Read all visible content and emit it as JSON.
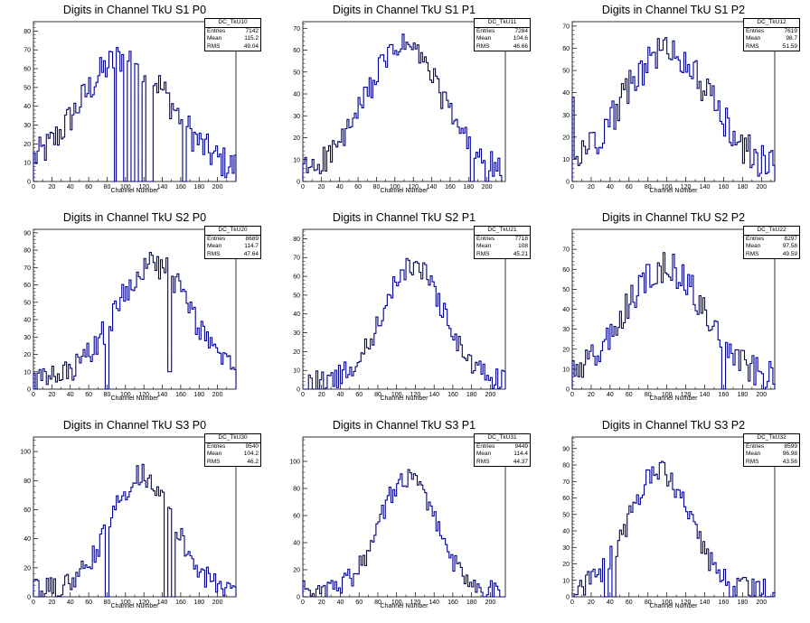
{
  "panels": [
    {
      "title": "Digits in Channel TkU S1 P0",
      "hist_name": "DC_TkU10",
      "entries": "7142",
      "mean": "115.2",
      "rms": "49.04"
    },
    {
      "title": "Digits in Channel TkU S1 P1",
      "hist_name": "DC_TkU11",
      "entries": "7284",
      "mean": "104.6",
      "rms": "46.66"
    },
    {
      "title": "Digits in Channel TkU S1 P2",
      "hist_name": "DC_TkU12",
      "entries": "7619",
      "mean": "98.7",
      "rms": "51.59"
    },
    {
      "title": "Digits in Channel TkU S2 P0",
      "hist_name": "DC_TkU20",
      "entries": "8689",
      "mean": "114.7",
      "rms": "47.64"
    },
    {
      "title": "Digits in Channel TkU S2 P1",
      "hist_name": "DC_TkU21",
      "entries": "7718",
      "mean": "108",
      "rms": "45.21"
    },
    {
      "title": "Digits in Channel TkU S2 P2",
      "hist_name": "DC_TkU22",
      "entries": "8297",
      "mean": "97.58",
      "rms": "49.59"
    },
    {
      "title": "Digits in Channel TkU S3 P0",
      "hist_name": "DC_TkU30",
      "entries": "9540",
      "mean": "104.2",
      "rms": "46.2"
    },
    {
      "title": "Digits in Channel TkU S3 P1",
      "hist_name": "DC_TkU31",
      "entries": "9449",
      "mean": "114.4",
      "rms": "44.37"
    },
    {
      "title": "Digits in Channel TkU S3 P2",
      "hist_name": "DC_TkU32",
      "entries": "8599",
      "mean": "96.98",
      "rms": "43.56"
    }
  ],
  "stat_labels": {
    "entries": "Entries",
    "mean": "Mean",
    "rms": "RMS"
  },
  "colors": {
    "line": "#00008b",
    "axis": "#000000"
  },
  "chart_data": [
    {
      "type": "bar",
      "title": "Digits in Channel TkU S1 P0",
      "xlabel": "Channel Number",
      "ylabel": "",
      "xlim": [
        0,
        220
      ],
      "ylim": [
        0,
        85
      ],
      "xticks": [
        0,
        20,
        40,
        60,
        80,
        100,
        120,
        140,
        160,
        180,
        200
      ],
      "yticks": [
        0,
        10,
        20,
        30,
        40,
        50,
        60,
        70,
        80
      ],
      "bins": 55,
      "center": 100,
      "peak": 62,
      "width": 70,
      "noise": 9,
      "start": 0,
      "end": 220,
      "dips": [
        [
          89,
          0
        ],
        [
          100,
          0
        ],
        [
          108,
          0
        ],
        [
          116,
          0
        ],
        [
          124,
          0
        ],
        [
          128,
          0
        ],
        [
          164,
          0
        ]
      ]
    },
    {
      "type": "bar",
      "title": "Digits in Channel TkU S1 P1",
      "xlabel": "Channel Number",
      "ylabel": "",
      "xlim": [
        0,
        220
      ],
      "ylim": [
        0,
        73
      ],
      "xticks": [
        0,
        20,
        40,
        60,
        80,
        100,
        120,
        140,
        160,
        180,
        200
      ],
      "yticks": [
        0,
        10,
        20,
        30,
        40,
        50,
        60,
        70
      ],
      "bins": 55,
      "center": 110,
      "peak": 58,
      "width": 58,
      "noise": 6,
      "start": 0,
      "end": 216,
      "dips": [
        [
          184,
          0
        ],
        [
          200,
          0
        ]
      ]
    },
    {
      "type": "bar",
      "title": "Digits in Channel TkU S1 P2",
      "xlabel": "Channel Number",
      "ylabel": "",
      "xlim": [
        0,
        214
      ],
      "ylim": [
        0,
        72
      ],
      "xticks": [
        0,
        20,
        40,
        60,
        80,
        100,
        120,
        140,
        160,
        180,
        200
      ],
      "yticks": [
        0,
        10,
        20,
        30,
        40,
        50,
        60,
        70
      ],
      "bins": 54,
      "center": 100,
      "peak": 55,
      "width": 65,
      "noise": 8,
      "start": 0,
      "end": 214,
      "dips": [
        [
          0,
          38
        ],
        [
          20,
          22
        ]
      ]
    },
    {
      "type": "bar",
      "title": "Digits in Channel TkU S2 P0",
      "xlabel": "Channel Number",
      "ylabel": "",
      "xlim": [
        0,
        220
      ],
      "ylim": [
        0,
        92
      ],
      "xticks": [
        0,
        20,
        40,
        60,
        80,
        100,
        120,
        140,
        160,
        180,
        200
      ],
      "yticks": [
        0,
        10,
        20,
        30,
        40,
        50,
        60,
        70,
        80,
        90
      ],
      "bins": 55,
      "center": 130,
      "peak": 68,
      "width": 58,
      "noise": 8,
      "start": 0,
      "end": 220,
      "dips": [
        [
          80,
          0
        ],
        [
          148,
          10
        ]
      ]
    },
    {
      "type": "bar",
      "title": "Digits in Channel TkU S2 P1",
      "xlabel": "Channel Number",
      "ylabel": "",
      "xlim": [
        0,
        216
      ],
      "ylim": [
        0,
        85
      ],
      "xticks": [
        0,
        20,
        40,
        60,
        80,
        100,
        120,
        140,
        160,
        180,
        200
      ],
      "yticks": [
        0,
        10,
        20,
        30,
        40,
        50,
        60,
        70,
        80
      ],
      "bins": 54,
      "center": 118,
      "peak": 62,
      "width": 45,
      "noise": 6,
      "start": 0,
      "end": 216,
      "dips": [
        [
          4,
          0
        ],
        [
          12,
          0
        ],
        [
          0,
          0
        ]
      ]
    },
    {
      "type": "bar",
      "title": "Digits in Channel TkU S2 P2",
      "xlabel": "Channel Number",
      "ylabel": "",
      "xlim": [
        0,
        214
      ],
      "ylim": [
        0,
        80
      ],
      "xticks": [
        0,
        20,
        40,
        60,
        80,
        100,
        120,
        140,
        160,
        180,
        200
      ],
      "yticks": [
        0,
        10,
        20,
        30,
        40,
        50,
        60,
        70
      ],
      "bins": 54,
      "center": 98,
      "peak": 57,
      "width": 60,
      "noise": 8,
      "start": 0,
      "end": 214,
      "dips": [
        [
          160,
          0
        ]
      ]
    },
    {
      "type": "bar",
      "title": "Digits in Channel TkU S3 P0",
      "xlabel": "Channel Number",
      "ylabel": "",
      "xlim": [
        0,
        220
      ],
      "ylim": [
        0,
        110
      ],
      "xticks": [
        0,
        20,
        40,
        60,
        80,
        100,
        120,
        140,
        160,
        180,
        200
      ],
      "yticks": [
        0,
        20,
        40,
        60,
        80,
        100
      ],
      "bins": 55,
      "center": 118,
      "peak": 80,
      "width": 48,
      "noise": 8,
      "start": 0,
      "end": 220,
      "dips": [
        [
          80,
          0
        ],
        [
          144,
          0
        ],
        [
          152,
          0
        ]
      ]
    },
    {
      "type": "bar",
      "title": "Digits in Channel TkU S3 P1",
      "xlabel": "Channel Number",
      "ylabel": "",
      "xlim": [
        0,
        216
      ],
      "ylim": [
        0,
        118
      ],
      "xticks": [
        0,
        20,
        40,
        60,
        80,
        100,
        120,
        140,
        160,
        180,
        200
      ],
      "yticks": [
        0,
        20,
        40,
        60,
        80,
        100
      ],
      "bins": 54,
      "center": 112,
      "peak": 85,
      "width": 42,
      "noise": 8,
      "start": 0,
      "end": 216,
      "dips": []
    },
    {
      "type": "bar",
      "title": "Digits in Channel TkU S3 P2",
      "xlabel": "Channel Number",
      "ylabel": "",
      "xlim": [
        0,
        214
      ],
      "ylim": [
        0,
        97
      ],
      "xticks": [
        0,
        20,
        40,
        60,
        80,
        100,
        120,
        140,
        160,
        180,
        200
      ],
      "yticks": [
        0,
        10,
        20,
        30,
        40,
        50,
        60,
        70,
        80,
        90
      ],
      "bins": 54,
      "center": 92,
      "peak": 72,
      "width": 45,
      "noise": 7,
      "start": 0,
      "end": 214,
      "dips": [
        [
          36,
          0
        ],
        [
          44,
          0
        ],
        [
          168,
          0
        ]
      ]
    }
  ]
}
